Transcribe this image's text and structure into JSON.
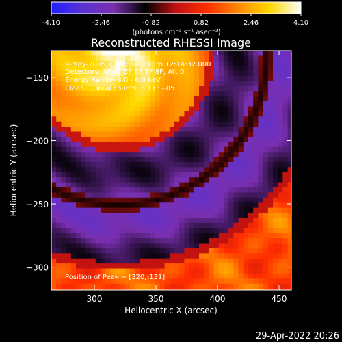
{
  "chart_data": {
    "type": "heatmap",
    "title": "Reconstructed RHESSI Image",
    "xlabel": "Heliocentric X (arcsec)",
    "ylabel": "Heliocentric Y (arcsec)",
    "xlim": [
      265,
      460
    ],
    "ylim": [
      -318,
      -129
    ],
    "xticks": [
      300,
      350,
      400,
      450
    ],
    "yticks": [
      -150,
      -200,
      -250,
      -300
    ],
    "colorbar": {
      "range": [
        -4.1,
        4.1
      ],
      "ticks": [
        "-4.10",
        "-2.46",
        "-0.82",
        "0.82",
        "2.46",
        "4.10"
      ],
      "unit": "(photons cm⁻² s⁻¹ asec⁻²)",
      "colors": [
        "#1f1fff",
        "#5a33d0",
        "#7a2fb0",
        "#000000",
        "#c01212",
        "#ff2e00",
        "#ff8a00",
        "#ffd800",
        "#ffffff"
      ]
    },
    "annotations": [
      "9-May-2005 12:08:32.000 to 12:14:32.000",
      "Detectors: 3F 4F 5F 6F 7F 8F, Att 0",
      "Energy Range: 3.0 - 6.0 keV",
      "Clean     Total counts: 3.11E+05"
    ],
    "peak_label": "Position of Peak = [320,-131]",
    "peak": [
      320,
      -131
    ]
  },
  "footer": {
    "timestamp": "29-Apr-2022 20:26"
  }
}
